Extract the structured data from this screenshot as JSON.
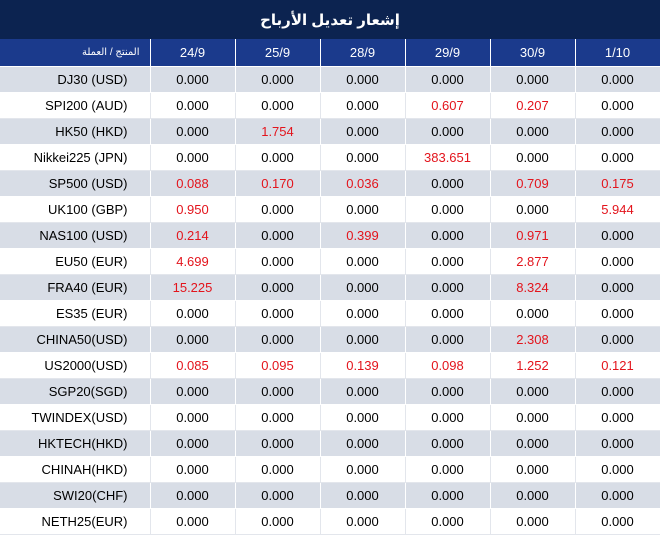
{
  "title": "إشعار تعديل الأرباح",
  "header": {
    "product_label": "المنتج / العملة",
    "dates": [
      "24/9",
      "25/9",
      "28/9",
      "29/9",
      "30/9",
      "1/10"
    ]
  },
  "colors": {
    "title_bg": "#0c2350",
    "header_bg": "#1b3a8c",
    "row_alt_bg": "#d8dde6",
    "highlight_red": "#e3141c"
  },
  "rows": [
    {
      "product": "DJ30 (USD)",
      "values": [
        "0.000",
        "0.000",
        "0.000",
        "0.000",
        "0.000",
        "0.000"
      ]
    },
    {
      "product": "SPI200 (AUD)",
      "values": [
        "0.000",
        "0.000",
        "0.000",
        "0.607",
        "0.207",
        "0.000"
      ]
    },
    {
      "product": "HK50 (HKD)",
      "values": [
        "0.000",
        "1.754",
        "0.000",
        "0.000",
        "0.000",
        "0.000"
      ]
    },
    {
      "product": "Nikkei225 (JPN)",
      "values": [
        "0.000",
        "0.000",
        "0.000",
        "383.651",
        "0.000",
        "0.000"
      ]
    },
    {
      "product": "SP500 (USD)",
      "values": [
        "0.088",
        "0.170",
        "0.036",
        "0.000",
        "0.709",
        "0.175"
      ]
    },
    {
      "product": "UK100 (GBP)",
      "values": [
        "0.950",
        "0.000",
        "0.000",
        "0.000",
        "0.000",
        "5.944"
      ]
    },
    {
      "product": "NAS100 (USD)",
      "values": [
        "0.214",
        "0.000",
        "0.399",
        "0.000",
        "0.971",
        "0.000"
      ]
    },
    {
      "product": "EU50 (EUR)",
      "values": [
        "4.699",
        "0.000",
        "0.000",
        "0.000",
        "2.877",
        "0.000"
      ]
    },
    {
      "product": "FRA40 (EUR)",
      "values": [
        "15.225",
        "0.000",
        "0.000",
        "0.000",
        "8.324",
        "0.000"
      ]
    },
    {
      "product": "ES35 (EUR)",
      "values": [
        "0.000",
        "0.000",
        "0.000",
        "0.000",
        "0.000",
        "0.000"
      ]
    },
    {
      "product": "CHINA50(USD)",
      "values": [
        "0.000",
        "0.000",
        "0.000",
        "0.000",
        "2.308",
        "0.000"
      ]
    },
    {
      "product": "US2000(USD)",
      "values": [
        "0.085",
        "0.095",
        "0.139",
        "0.098",
        "1.252",
        "0.121"
      ]
    },
    {
      "product": "SGP20(SGD)",
      "values": [
        "0.000",
        "0.000",
        "0.000",
        "0.000",
        "0.000",
        "0.000"
      ]
    },
    {
      "product": "TWINDEX(USD)",
      "values": [
        "0.000",
        "0.000",
        "0.000",
        "0.000",
        "0.000",
        "0.000"
      ]
    },
    {
      "product": "HKTECH(HKD)",
      "values": [
        "0.000",
        "0.000",
        "0.000",
        "0.000",
        "0.000",
        "0.000"
      ]
    },
    {
      "product": "CHINAH(HKD)",
      "values": [
        "0.000",
        "0.000",
        "0.000",
        "0.000",
        "0.000",
        "0.000"
      ]
    },
    {
      "product": "SWI20(CHF)",
      "values": [
        "0.000",
        "0.000",
        "0.000",
        "0.000",
        "0.000",
        "0.000"
      ]
    },
    {
      "product": "NETH25(EUR)",
      "values": [
        "0.000",
        "0.000",
        "0.000",
        "0.000",
        "0.000",
        "0.000"
      ]
    }
  ]
}
